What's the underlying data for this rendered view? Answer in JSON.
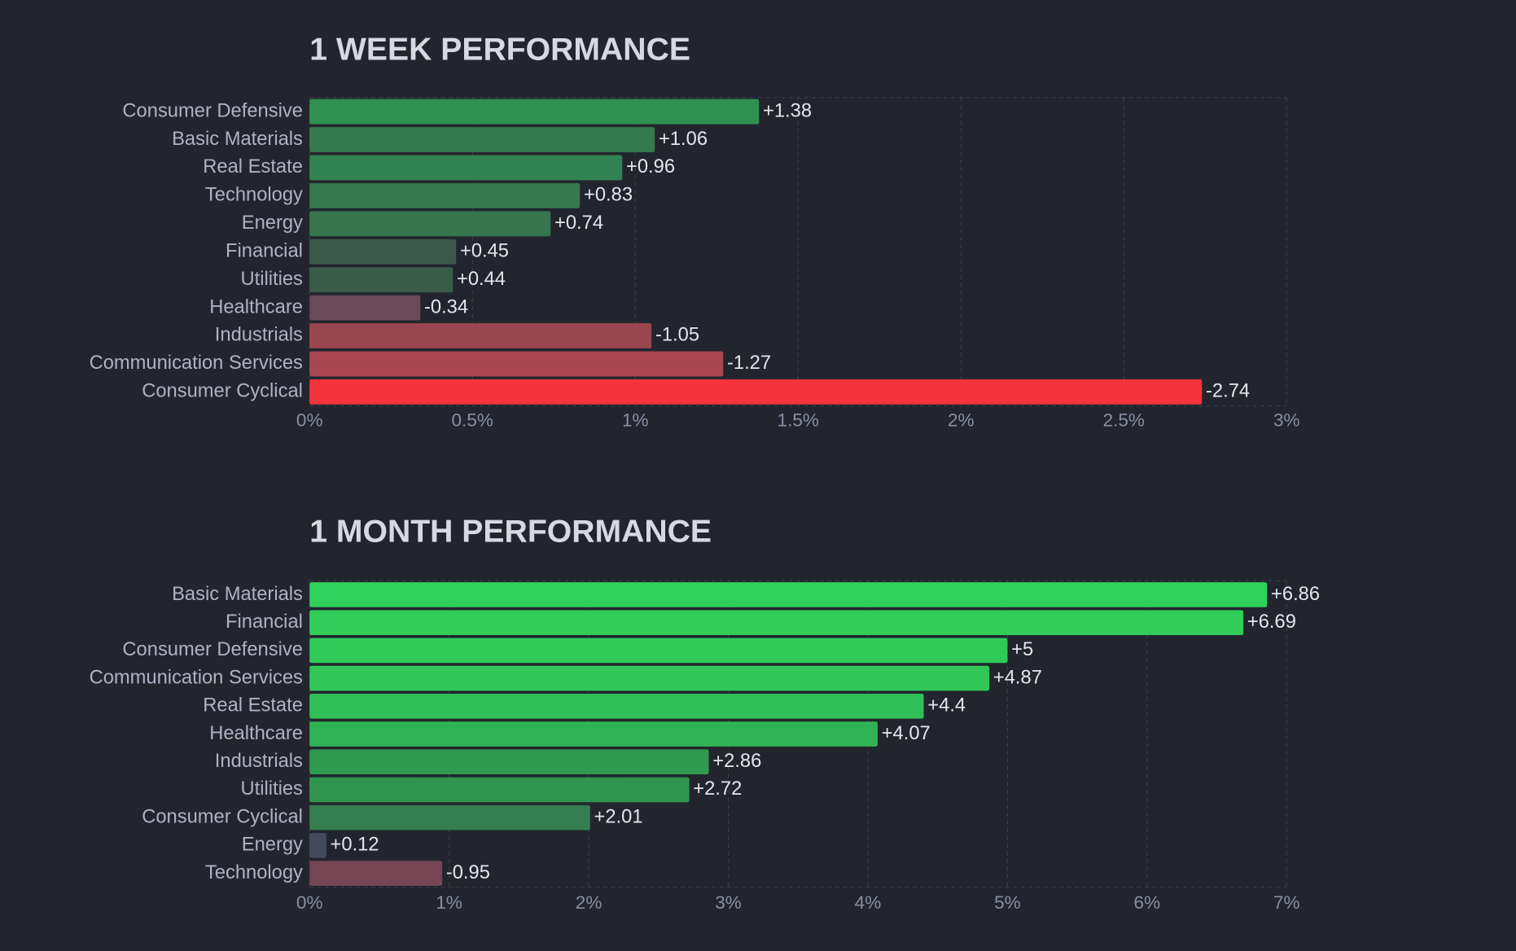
{
  "chart_data": [
    {
      "type": "bar",
      "orientation": "horizontal",
      "title": "1 WEEK PERFORMANCE",
      "categories": [
        "Consumer Defensive",
        "Basic Materials",
        "Real Estate",
        "Technology",
        "Energy",
        "Financial",
        "Utilities",
        "Healthcare",
        "Industrials",
        "Communication Services",
        "Consumer Cyclical"
      ],
      "values": [
        1.38,
        1.06,
        0.96,
        0.83,
        0.74,
        0.45,
        0.44,
        -0.34,
        -1.05,
        -1.27,
        -2.74
      ],
      "value_labels": [
        "+1.38",
        "+1.06",
        "+0.96",
        "+0.83",
        "+0.74",
        "+0.45",
        "+0.44",
        "-0.34",
        "-1.05",
        "-1.27",
        "-2.74"
      ],
      "colors": [
        "#2f9150",
        "#357a50",
        "#338352",
        "#36784f",
        "#36754e",
        "#3b5a4b",
        "#3b5c4b",
        "#6a4a58",
        "#9a4650",
        "#a8474f",
        "#f4343c"
      ],
      "xlim": [
        0,
        3
      ],
      "xticks": [
        {
          "value": 0,
          "label": "0%"
        },
        {
          "value": 0.5,
          "label": "0.5%"
        },
        {
          "value": 1,
          "label": "1%"
        },
        {
          "value": 1.5,
          "label": "1.5%"
        },
        {
          "value": 2,
          "label": "2%"
        },
        {
          "value": 2.5,
          "label": "2.5%"
        },
        {
          "value": 3,
          "label": "3%"
        }
      ],
      "grid": true
    },
    {
      "type": "bar",
      "orientation": "horizontal",
      "title": "1 MONTH PERFORMANCE",
      "categories": [
        "Basic Materials",
        "Financial",
        "Consumer Defensive",
        "Communication Services",
        "Real Estate",
        "Healthcare",
        "Industrials",
        "Utilities",
        "Consumer Cyclical",
        "Energy",
        "Technology"
      ],
      "values": [
        6.86,
        6.69,
        5,
        4.87,
        4.4,
        4.07,
        2.86,
        2.72,
        2.01,
        0.12,
        -0.95
      ],
      "value_labels": [
        "+6.86",
        "+6.69",
        "+5",
        "+4.87",
        "+4.4",
        "+4.07",
        "+2.86",
        "+2.72",
        "+2.01",
        "+0.12",
        "-0.95"
      ],
      "colors": [
        "#30d15a",
        "#30cd59",
        "#30ca59",
        "#30c758",
        "#31c057",
        "#30b355",
        "#2f9a50",
        "#30964f",
        "#347d4f",
        "#444a5a",
        "#744654"
      ],
      "xlim": [
        0,
        7
      ],
      "xticks": [
        {
          "value": 0,
          "label": "0%"
        },
        {
          "value": 1,
          "label": "1%"
        },
        {
          "value": 2,
          "label": "2%"
        },
        {
          "value": 3,
          "label": "3%"
        },
        {
          "value": 4,
          "label": "4%"
        },
        {
          "value": 5,
          "label": "5%"
        },
        {
          "value": 6,
          "label": "6%"
        },
        {
          "value": 7,
          "label": "7%"
        }
      ],
      "grid": true
    }
  ]
}
